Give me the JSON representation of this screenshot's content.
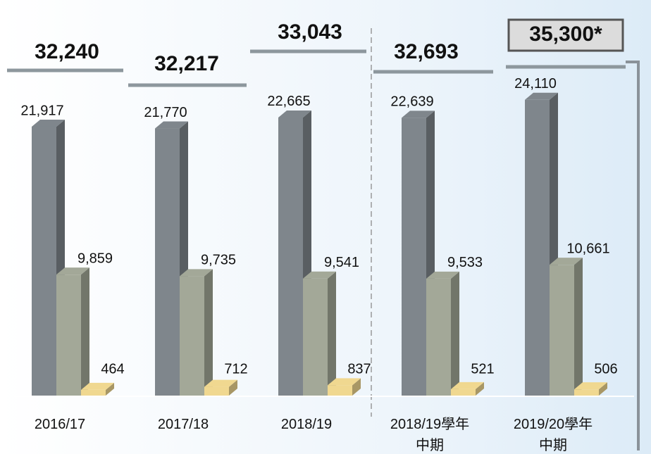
{
  "chart_data": {
    "type": "bar3d",
    "categories": [
      "2016/17",
      "2017/18",
      "2018/19",
      "2018/19學年\n中期",
      "2019/20學年\n中期"
    ],
    "series": [
      {
        "color": "#7f868c",
        "values": [
          21917,
          21770,
          22665,
          22639,
          24110
        ],
        "value_labels": [
          "21,917",
          "21,770",
          "22,665",
          "22,639",
          "24,110"
        ]
      },
      {
        "color": "#a3a898",
        "values": [
          9859,
          9735,
          9541,
          9533,
          10661
        ],
        "value_labels": [
          "9,859",
          "9,735",
          "9,541",
          "9,533",
          "10,661"
        ]
      },
      {
        "color": "#f0d890",
        "values": [
          464,
          712,
          837,
          521,
          506
        ],
        "value_labels": [
          "464",
          "712",
          "837",
          "521",
          "506"
        ]
      }
    ],
    "totals": {
      "values": [
        32240,
        32217,
        33043,
        32693,
        35300
      ],
      "value_labels": [
        "32,240",
        "32,217",
        "33,043",
        "32,693",
        "35,300*"
      ]
    }
  }
}
